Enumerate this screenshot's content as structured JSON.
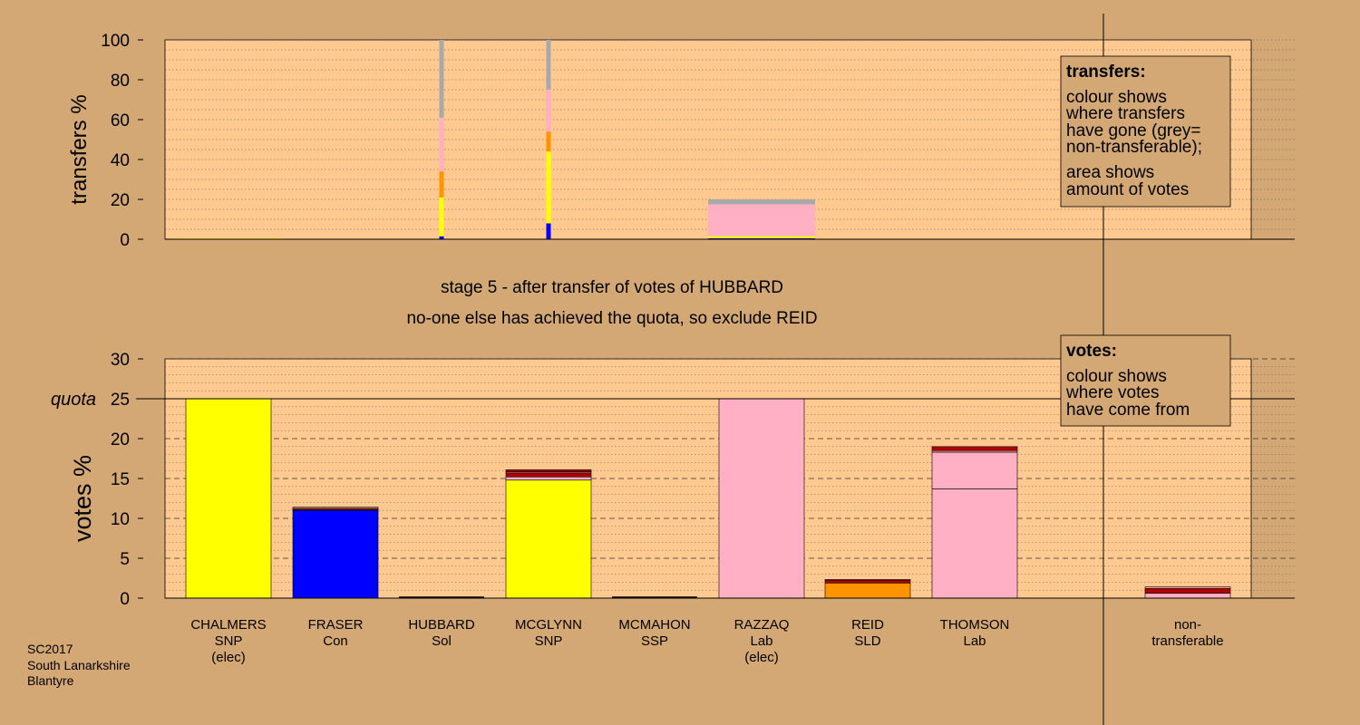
{
  "colors": {
    "background": "#d3a875",
    "plot_bg": "#ffc990",
    "SNP": "#ffff00",
    "Con": "#0000ff",
    "Lab": "#ffb0c4",
    "SLD": "#ff9400",
    "Sol": "#b00000",
    "nontransferable": "#a9a9a9",
    "Lab_secondary": "#ff9999"
  },
  "titles": {
    "stage": "stage 5 - after transfer of votes of HUBBARD",
    "status": "no-one else has achieved the quota, so exclude REID"
  },
  "legend_transfers": {
    "heading": "transfers:",
    "lines": [
      "colour shows",
      "where transfers",
      "have gone (grey=",
      "non-transferable);",
      "area shows",
      "amount of votes"
    ]
  },
  "legend_votes": {
    "heading": "votes:",
    "lines": [
      "colour shows",
      "where votes",
      "have come from"
    ]
  },
  "footer": [
    "SC2017",
    "South Lanarkshire",
    "Blantyre"
  ],
  "chart_data": [
    {
      "type": "bar",
      "ylabel": "transfers %",
      "ylim": [
        0,
        100
      ],
      "yticks": [
        0,
        20,
        40,
        60,
        80,
        100
      ],
      "grid": "dotted",
      "categories": [
        "CHALMERS",
        "FRASER",
        "HUBBARD",
        "MCGLYNN",
        "MCMAHON",
        "RAZZAQ",
        "REID",
        "THOMSON"
      ],
      "bars": [
        {
          "candidate": "CHALMERS",
          "width": "wide",
          "segments": [
            {
              "party": "SNP",
              "value": 0.4
            }
          ]
        },
        {
          "candidate": "HUBBARD",
          "width": "thin",
          "segments": [
            {
              "party": "Con",
              "value": 1.5
            },
            {
              "party": "SNP",
              "value": 19.5
            },
            {
              "party": "SLD",
              "value": 13
            },
            {
              "party": "Lab",
              "value": 27
            },
            {
              "party": "nontransferable",
              "value": 39
            }
          ]
        },
        {
          "candidate": "MCGLYNN",
          "width": "thin",
          "segments": [
            {
              "party": "Con",
              "value": 8
            },
            {
              "party": "SNP",
              "value": 36
            },
            {
              "party": "SLD",
              "value": 10
            },
            {
              "party": "Lab",
              "value": 21
            },
            {
              "party": "nontransferable",
              "value": 25
            }
          ]
        },
        {
          "candidate": "RAZZAQ",
          "width": "wide",
          "segments": [
            {
              "party": "Con",
              "value": 0.5
            },
            {
              "party": "SNP",
              "value": 1
            },
            {
              "party": "Lab",
              "value": 16
            },
            {
              "party": "nontransferable",
              "value": 2.5
            }
          ]
        }
      ]
    },
    {
      "type": "bar",
      "ylabel": "votes %",
      "ylim": [
        0,
        30
      ],
      "yticks": [
        0,
        5,
        10,
        15,
        20,
        25,
        30
      ],
      "quota": 25,
      "quota_label": "quota",
      "grid": "dashed",
      "categories": [
        {
          "name": "CHALMERS",
          "party": "SNP",
          "note": "(elec)"
        },
        {
          "name": "FRASER",
          "party": "Con",
          "note": ""
        },
        {
          "name": "HUBBARD",
          "party": "Sol",
          "note": ""
        },
        {
          "name": "MCGLYNN",
          "party": "SNP",
          "note": ""
        },
        {
          "name": "MCMAHON",
          "party": "SSP",
          "note": ""
        },
        {
          "name": "RAZZAQ",
          "party": "Lab",
          "note": "(elec)"
        },
        {
          "name": "REID",
          "party": "SLD",
          "note": ""
        },
        {
          "name": "THOMSON",
          "party": "Lab",
          "note": ""
        },
        {
          "name": "non-",
          "party": "transferable",
          "note": ""
        }
      ],
      "stacks": [
        [
          {
            "party": "SNP",
            "value": 25
          }
        ],
        [
          {
            "party": "Con",
            "value": 11
          },
          {
            "party": "Sol",
            "value": 0.15
          },
          {
            "party": "SNP",
            "value": 0.1
          },
          {
            "party": "Lab_secondary",
            "value": 0.15
          }
        ],
        [],
        [
          {
            "party": "SNP",
            "value": 14.8
          },
          {
            "party": "Lab",
            "value": 0.4
          },
          {
            "party": "Sol",
            "value": 0.5
          },
          {
            "party": "Lab_secondary",
            "value": 0.15
          },
          {
            "party": "Sol",
            "value": 0.25
          }
        ],
        [],
        [
          {
            "party": "Lab",
            "value": 25
          }
        ],
        [
          {
            "party": "SLD",
            "value": 1.9
          },
          {
            "party": "Sol",
            "value": 0.35
          },
          {
            "party": "Lab_secondary",
            "value": 0.1
          }
        ],
        [
          {
            "party": "Lab",
            "value": 13.7
          },
          {
            "party": "Lab",
            "value": 4.6
          },
          {
            "party": "Lab_secondary",
            "value": 0.2
          },
          {
            "party": "Sol",
            "value": 0.5
          }
        ],
        [
          {
            "party": "Lab",
            "value": 0.6
          },
          {
            "party": "Sol",
            "value": 0.6
          },
          {
            "party": "Lab_secondary",
            "value": 0.2
          }
        ]
      ]
    }
  ]
}
